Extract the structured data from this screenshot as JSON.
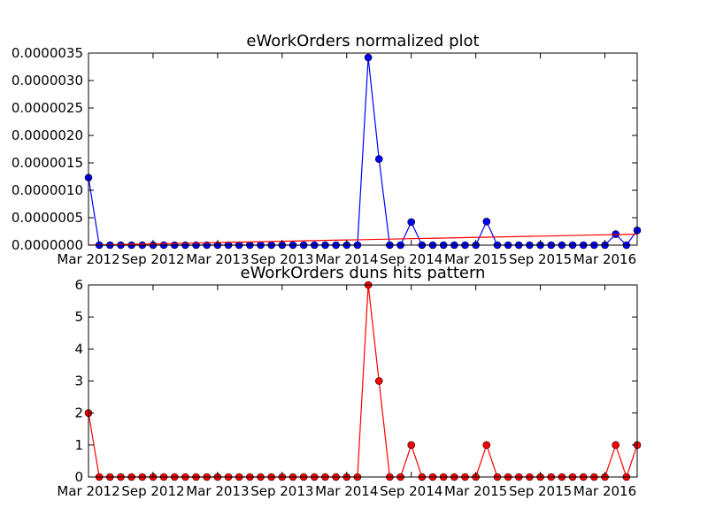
{
  "chart_data": [
    {
      "type": "line",
      "title": "eWorkOrders normalized plot",
      "xlabel": "",
      "ylabel": "",
      "x_ticks": [
        "Mar 2012",
        "Sep 2012",
        "Mar 2013",
        "Sep 2013",
        "Mar 2014",
        "Sep 2014",
        "Mar 2015",
        "Sep 2015",
        "Mar 2016"
      ],
      "y_ticks": [
        "0.0000000",
        "0.0000005",
        "0.0000010",
        "0.0000015",
        "0.0000020",
        "0.0000025",
        "0.0000030",
        "0.0000035"
      ],
      "ylim": [
        0,
        3.5e-06
      ],
      "grid": false,
      "series": [
        {
          "color": "#0000ff",
          "marker": "circle",
          "values": [
            1.23e-06,
            0,
            0,
            0,
            0,
            0,
            0,
            0,
            0,
            0,
            0,
            0,
            0,
            0,
            0,
            0,
            0,
            0,
            0,
            0,
            0,
            0,
            0,
            0,
            0,
            0,
            3.42e-06,
            1.57e-06,
            0,
            0,
            4.2e-07,
            0,
            0,
            0,
            0,
            0,
            0,
            4.3e-07,
            0,
            0,
            0,
            0,
            0,
            0,
            0,
            0,
            0,
            0,
            0,
            2e-07,
            0,
            2.7e-07
          ]
        },
        {
          "color": "#ff0000",
          "marker": "none",
          "values": [
            0,
            3.92e-09,
            7.84e-09,
            1.176e-08,
            1.569e-08,
            1.961e-08,
            2.353e-08,
            2.745e-08,
            3.137e-08,
            3.529e-08,
            3.922e-08,
            4.314e-08,
            4.706e-08,
            5.098e-08,
            5.49e-08,
            5.882e-08,
            6.275e-08,
            6.667e-08,
            7.059e-08,
            7.451e-08,
            7.843e-08,
            8.235e-08,
            8.627e-08,
            9.02e-08,
            9.412e-08,
            9.804e-08,
            1.0196e-07,
            1.0588e-07,
            1.098e-07,
            1.1373e-07,
            1.1765e-07,
            1.2157e-07,
            1.2549e-07,
            1.2941e-07,
            1.3333e-07,
            1.3725e-07,
            1.4118e-07,
            1.451e-07,
            1.4902e-07,
            1.5294e-07,
            1.5686e-07,
            1.6078e-07,
            1.6471e-07,
            1.6863e-07,
            1.7255e-07,
            1.7647e-07,
            1.8039e-07,
            1.8431e-07,
            1.8824e-07,
            1.9216e-07,
            1.9608e-07,
            2e-07
          ]
        }
      ]
    },
    {
      "type": "line",
      "title": "eWorkOrders duns hits pattern",
      "xlabel": "",
      "ylabel": "",
      "x_ticks": [
        "Mar 2012",
        "Sep 2012",
        "Mar 2013",
        "Sep 2013",
        "Mar 2014",
        "Sep 2014",
        "Mar 2015",
        "Sep 2015",
        "Mar 2016"
      ],
      "y_ticks": [
        "0",
        "1",
        "2",
        "3",
        "4",
        "5",
        "6"
      ],
      "ylim": [
        0,
        6
      ],
      "grid": false,
      "series": [
        {
          "color": "#ff0000",
          "marker": "circle",
          "values": [
            2,
            0,
            0,
            0,
            0,
            0,
            0,
            0,
            0,
            0,
            0,
            0,
            0,
            0,
            0,
            0,
            0,
            0,
            0,
            0,
            0,
            0,
            0,
            0,
            0,
            0,
            6,
            3,
            0,
            0,
            1,
            0,
            0,
            0,
            0,
            0,
            0,
            1,
            0,
            0,
            0,
            0,
            0,
            0,
            0,
            0,
            0,
            0,
            0,
            1,
            0,
            1
          ]
        }
      ]
    }
  ]
}
